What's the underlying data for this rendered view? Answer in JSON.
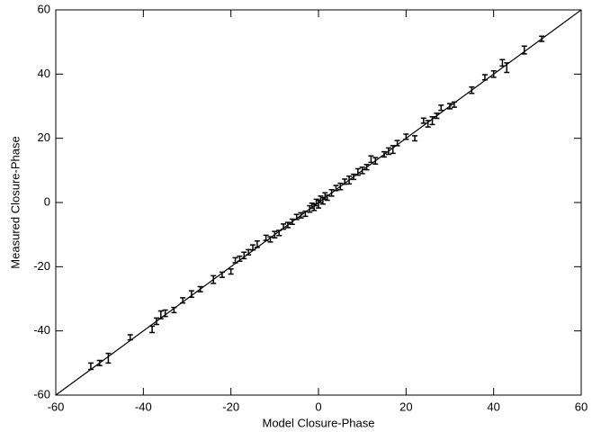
{
  "chart_data": {
    "type": "scatter",
    "x_label": "Model Closure-Phase",
    "y_label": "Measured Closure-Phase",
    "xlim": [
      -60,
      60
    ],
    "ylim": [
      -60,
      60
    ],
    "xticks": [
      -60,
      -40,
      -20,
      0,
      20,
      40,
      60
    ],
    "yticks": [
      -60,
      -40,
      -20,
      0,
      20,
      40,
      60
    ],
    "color": "#000000",
    "reference_line": true,
    "x": [
      -52,
      -50,
      -48,
      -43,
      -38,
      -37,
      -36,
      -35,
      -33,
      -31,
      -29,
      -27,
      -24,
      -22,
      -20,
      -19,
      -18,
      -17,
      -16,
      -15,
      -14,
      -12,
      -11,
      -10,
      -9,
      -8,
      -7,
      -6,
      -5,
      -4,
      -3,
      -2,
      -1.5,
      -1,
      -0.5,
      0,
      0.5,
      1,
      1.5,
      2,
      3,
      4,
      5,
      6,
      7,
      8,
      9,
      10,
      11,
      12,
      13,
      15,
      16,
      17,
      18,
      20,
      22,
      24,
      25,
      26,
      27,
      28,
      30,
      31,
      35,
      38,
      40,
      42,
      43,
      47,
      51
    ],
    "values": [
      -51,
      -50,
      -48.5,
      -42,
      -39.5,
      -37,
      -35,
      -34.5,
      -33.5,
      -30.5,
      -28.5,
      -27,
      -24,
      -22.5,
      -21.5,
      -18,
      -17.5,
      -16.5,
      -15.5,
      -14,
      -13,
      -11,
      -11.5,
      -10,
      -9.5,
      -7.5,
      -7,
      -6,
      -4.5,
      -4,
      -3.5,
      -2,
      -1,
      -1.5,
      0,
      -0.5,
      1,
      0.5,
      2,
      1.5,
      3,
      4.5,
      5,
      6.5,
      7,
      8,
      9.5,
      10,
      11,
      13.5,
      13,
      15,
      16,
      16.5,
      18.5,
      20.5,
      20,
      25.5,
      24.5,
      25.5,
      27,
      29.5,
      30,
      30.5,
      35,
      39,
      40,
      43.5,
      42,
      47.5,
      51
    ],
    "errors": [
      1,
      0.8,
      1.5,
      0.8,
      1,
      1,
      1.2,
      1,
      0.8,
      0.8,
      1,
      0.8,
      1.2,
      0.8,
      0.8,
      0.8,
      0.8,
      1,
      0.8,
      0.8,
      1,
      0.8,
      0.8,
      1,
      0.8,
      0.8,
      0.8,
      0.8,
      0.8,
      0.8,
      0.8,
      1,
      0.8,
      1,
      1,
      1.2,
      1,
      1,
      1,
      0.8,
      1,
      0.8,
      1,
      0.8,
      1.2,
      0.8,
      1,
      1,
      0.8,
      1,
      1,
      0.8,
      1,
      1.2,
      0.8,
      0.8,
      0.8,
      0.8,
      1,
      1.2,
      0.8,
      0.8,
      0.8,
      0.8,
      1,
      0.8,
      1,
      1,
      1.5,
      1.2,
      0.8
    ]
  }
}
